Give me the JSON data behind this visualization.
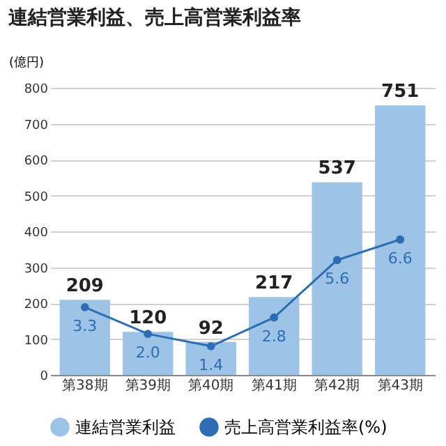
{
  "chart_data": {
    "type": "bar",
    "title": "連結営業利益、売上高営業利益率",
    "ylabel": "(億円)",
    "categories": [
      "第38期",
      "第39期",
      "第40期",
      "第41期",
      "第42期",
      "第43期"
    ],
    "series": [
      {
        "name": "連結営業利益",
        "type": "bar",
        "color": "#9dc3e6",
        "values": [
          209,
          120,
          92,
          217,
          537,
          751
        ]
      },
      {
        "name": "売上高営業利益率(%)",
        "type": "line",
        "axis": "y2",
        "color": "#2e6db4",
        "values": [
          3.3,
          2.0,
          1.4,
          2.8,
          5.6,
          6.6
        ],
        "value_labels": [
          "3.3",
          "2.0",
          "1.4",
          "2.8",
          "5.6",
          "6.6"
        ]
      }
    ],
    "ylim": [
      0,
      800
    ],
    "yticks": [
      0,
      100,
      200,
      300,
      400,
      500,
      600,
      700,
      800
    ],
    "y2lim": [
      0,
      14
    ],
    "grid": "y",
    "legend": "bottom",
    "data_labels": true,
    "marker": "circle",
    "line_style": "solid"
  }
}
